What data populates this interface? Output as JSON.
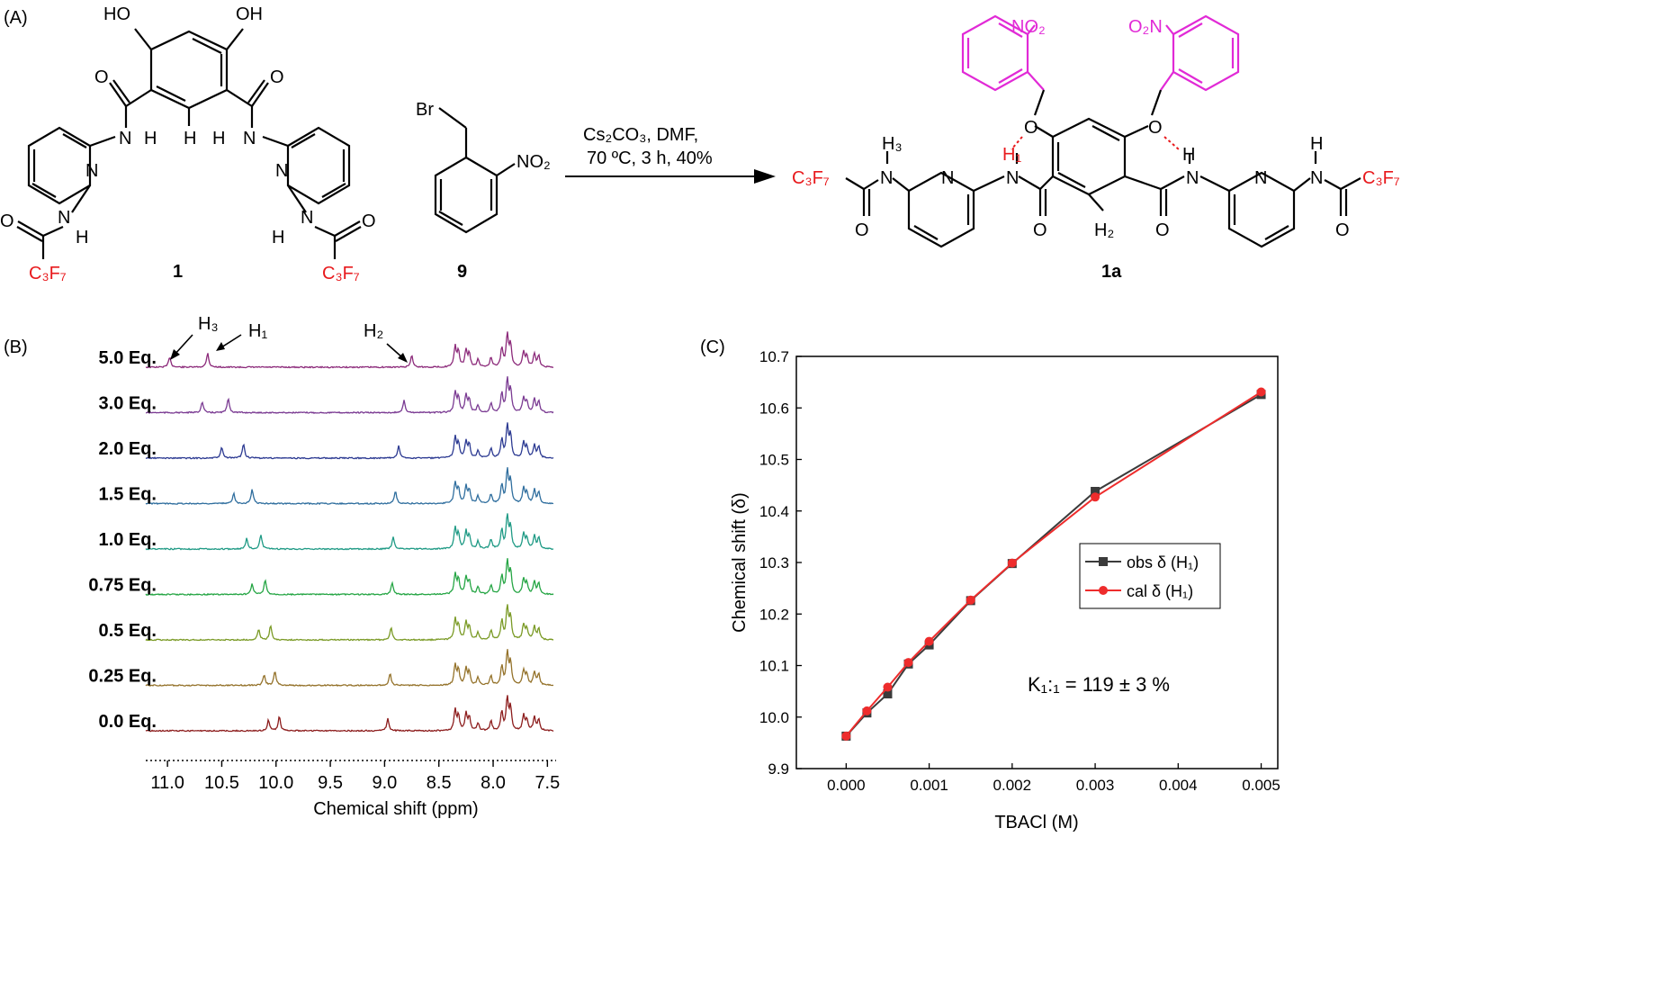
{
  "panel_a": {
    "label": "(A)",
    "compound_1": "1",
    "compound_9": "9",
    "compound_1a": "1a",
    "reagents_line1": "Cs₂CO₃, DMF,",
    "reagents_line2": "70 ºC, 3 h, 40%",
    "group_c3f7": "C₃F₇",
    "group_no2": "NO₂",
    "group_o2n": "O₂N",
    "atom_br": "Br",
    "atom_n": "N",
    "atom_o": "O",
    "atom_h": "H",
    "atom_ho": "HO",
    "atom_oh": "OH",
    "label_h1": "H₁",
    "label_h2": "H₂",
    "label_h3": "H₃",
    "colors": {
      "fluoroalkyl": "#e8191c",
      "nitrobenzyl": "#e12ad6",
      "black": "#000000"
    }
  },
  "panel_b": {
    "label": "(B)",
    "xlabel": "Chemical shift (ppm)",
    "ticks": [
      "11.0",
      "10.5",
      "10.0",
      "9.5",
      "9.0",
      "8.5",
      "8.0",
      "7.5"
    ],
    "peak_labels": [
      "H₃",
      "H₁",
      "H₂"
    ],
    "spectra": [
      {
        "label": "5.0 Eq.",
        "color": "#8c2a7a",
        "h3": 10.98,
        "h1": 10.63,
        "h2": 8.75
      },
      {
        "label": "3.0 Eq.",
        "color": "#7a3a92",
        "h3": 10.68,
        "h1": 10.44,
        "h2": 8.82
      },
      {
        "label": "2.0 Eq.",
        "color": "#2c3a92",
        "h3": 10.5,
        "h1": 10.3,
        "h2": 8.87
      },
      {
        "label": "1.5 Eq.",
        "color": "#2f6e9e",
        "h3": 10.39,
        "h1": 10.22,
        "h2": 8.9
      },
      {
        "label": "1.0 Eq.",
        "color": "#1f9a85",
        "h3": 10.27,
        "h1": 10.14,
        "h2": 8.92
      },
      {
        "label": "0.75 Eq.",
        "color": "#25a544",
        "h3": 10.22,
        "h1": 10.1,
        "h2": 8.93
      },
      {
        "label": "0.5 Eq.",
        "color": "#7a9a25",
        "h3": 10.16,
        "h1": 10.05,
        "h2": 8.94
      },
      {
        "label": "0.25 Eq.",
        "color": "#94722a",
        "h3": 10.11,
        "h1": 10.01,
        "h2": 8.95
      },
      {
        "label": "0.0 Eq.",
        "color": "#8c1c1c",
        "h3": 10.07,
        "h1": 9.97,
        "h2": 8.97
      }
    ]
  },
  "panel_c": {
    "label": "(C)",
    "annotation": "K₁:₁ = 119 ± 3 %",
    "legend": [
      "obs δ (H₁)",
      "cal δ (H₁)"
    ]
  },
  "chart_data": {
    "type": "line",
    "title": "",
    "xlabel": "TBACl (M)",
    "ylabel": "Chemical shift (δ)",
    "xlim": [
      -0.0006,
      0.0052
    ],
    "ylim": [
      9.9,
      10.7
    ],
    "xticks": [
      0.0,
      0.001,
      0.002,
      0.003,
      0.004,
      0.005
    ],
    "xtick_labels": [
      "0.000",
      "0.001",
      "0.002",
      "0.003",
      "0.004",
      "0.005"
    ],
    "yticks": [
      9.9,
      10.0,
      10.1,
      10.2,
      10.3,
      10.4,
      10.5,
      10.6,
      10.7
    ],
    "ytick_labels": [
      "9.9",
      "10.0",
      "10.1",
      "10.2",
      "10.3",
      "10.4",
      "10.5",
      "10.6",
      "10.7"
    ],
    "legend_position": "center-right",
    "x": [
      0.0,
      0.00025,
      0.0005,
      0.00075,
      0.001,
      0.0015,
      0.002,
      0.003,
      0.005
    ],
    "series": [
      {
        "name": "obs δ (H₁)",
        "color": "#3b3b3b",
        "marker": "square",
        "values": [
          9.963,
          10.008,
          10.045,
          10.103,
          10.14,
          10.226,
          10.298,
          10.438,
          10.626
        ]
      },
      {
        "name": "cal δ (H₁)",
        "color": "#ee2c2c",
        "marker": "circle",
        "values": [
          9.963,
          10.012,
          10.058,
          10.106,
          10.147,
          10.227,
          10.299,
          10.427,
          10.631
        ]
      }
    ]
  }
}
